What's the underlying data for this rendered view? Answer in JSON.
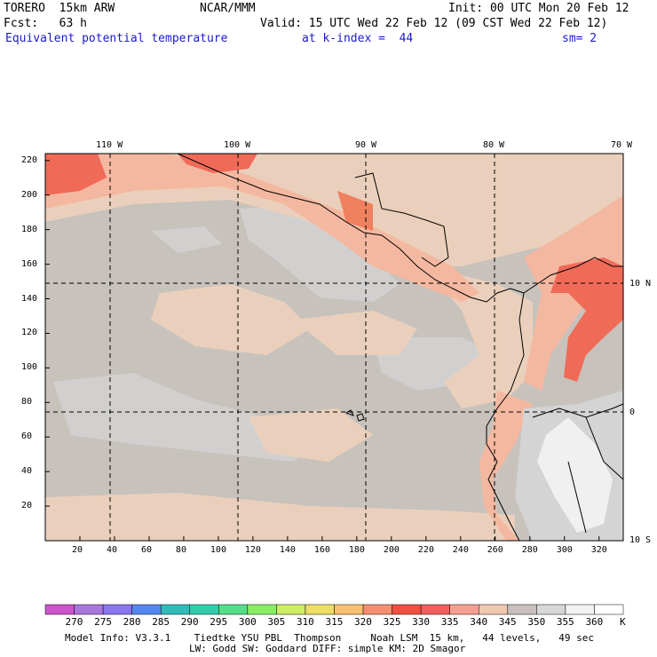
{
  "header": {
    "model": "TORERO  15km ARW",
    "center": "NCAR/MMM",
    "init": "Init: 00 UTC Mon 20 Feb 12",
    "fcst": "Fcst:   63 h",
    "valid": "Valid: 15 UTC Wed 22 Feb 12 (09 CST Wed 22 Feb 12)",
    "field": "Equivalent potential temperature",
    "level": "at k-index =  44",
    "smooth": "sm= 2"
  },
  "map": {
    "top_lon_labels": [
      "110 W",
      "100 W",
      "90 W",
      "80 W",
      "70 W"
    ],
    "right_lat_labels": [
      "10 N",
      "0",
      "10 S"
    ],
    "left_y_ticks": [
      "220",
      "200",
      "180",
      "160",
      "140",
      "120",
      "100",
      "80",
      "60",
      "40",
      "20"
    ],
    "bottom_x_ticks": [
      "20",
      "40",
      "60",
      "80",
      "100",
      "120",
      "140",
      "160",
      "180",
      "200",
      "220",
      "240",
      "260",
      "280",
      "300",
      "320"
    ],
    "colors": {
      "bg_350": "#c8c2bc",
      "c345": "#ead0bc",
      "c340": "#f4c8b0",
      "c335": "#f4a088",
      "c330": "#f06050",
      "c325": "#f08060",
      "c355": "#d8d8d8",
      "c360": "#f2f2f2"
    }
  },
  "colorbar": {
    "labels": [
      "270",
      "275",
      "280",
      "285",
      "290",
      "295",
      "300",
      "305",
      "310",
      "315",
      "320",
      "325",
      "330",
      "335",
      "340",
      "345",
      "350",
      "355",
      "360"
    ],
    "unit": "K",
    "colors": [
      "#cc55cc",
      "#aa77dd",
      "#8877ee",
      "#5588ee",
      "#33bbbb",
      "#33ccaa",
      "#55dd88",
      "#88ee66",
      "#ccee66",
      "#eedd66",
      "#f8c070",
      "#f49070",
      "#f05040",
      "#f06060",
      "#f4a090",
      "#f0c8b0",
      "#c8c0bc",
      "#d8d8d8",
      "#f2f2f2",
      "#ffffff"
    ]
  },
  "footer": {
    "line1": "Model Info: V3.3.1    Tiedtke YSU PBL  Thompson     Noah LSM  15 km,   44 levels,   49 sec",
    "line2": "LW: Godd SW: Goddard DIFF: simple KM: 2D Smagor"
  }
}
